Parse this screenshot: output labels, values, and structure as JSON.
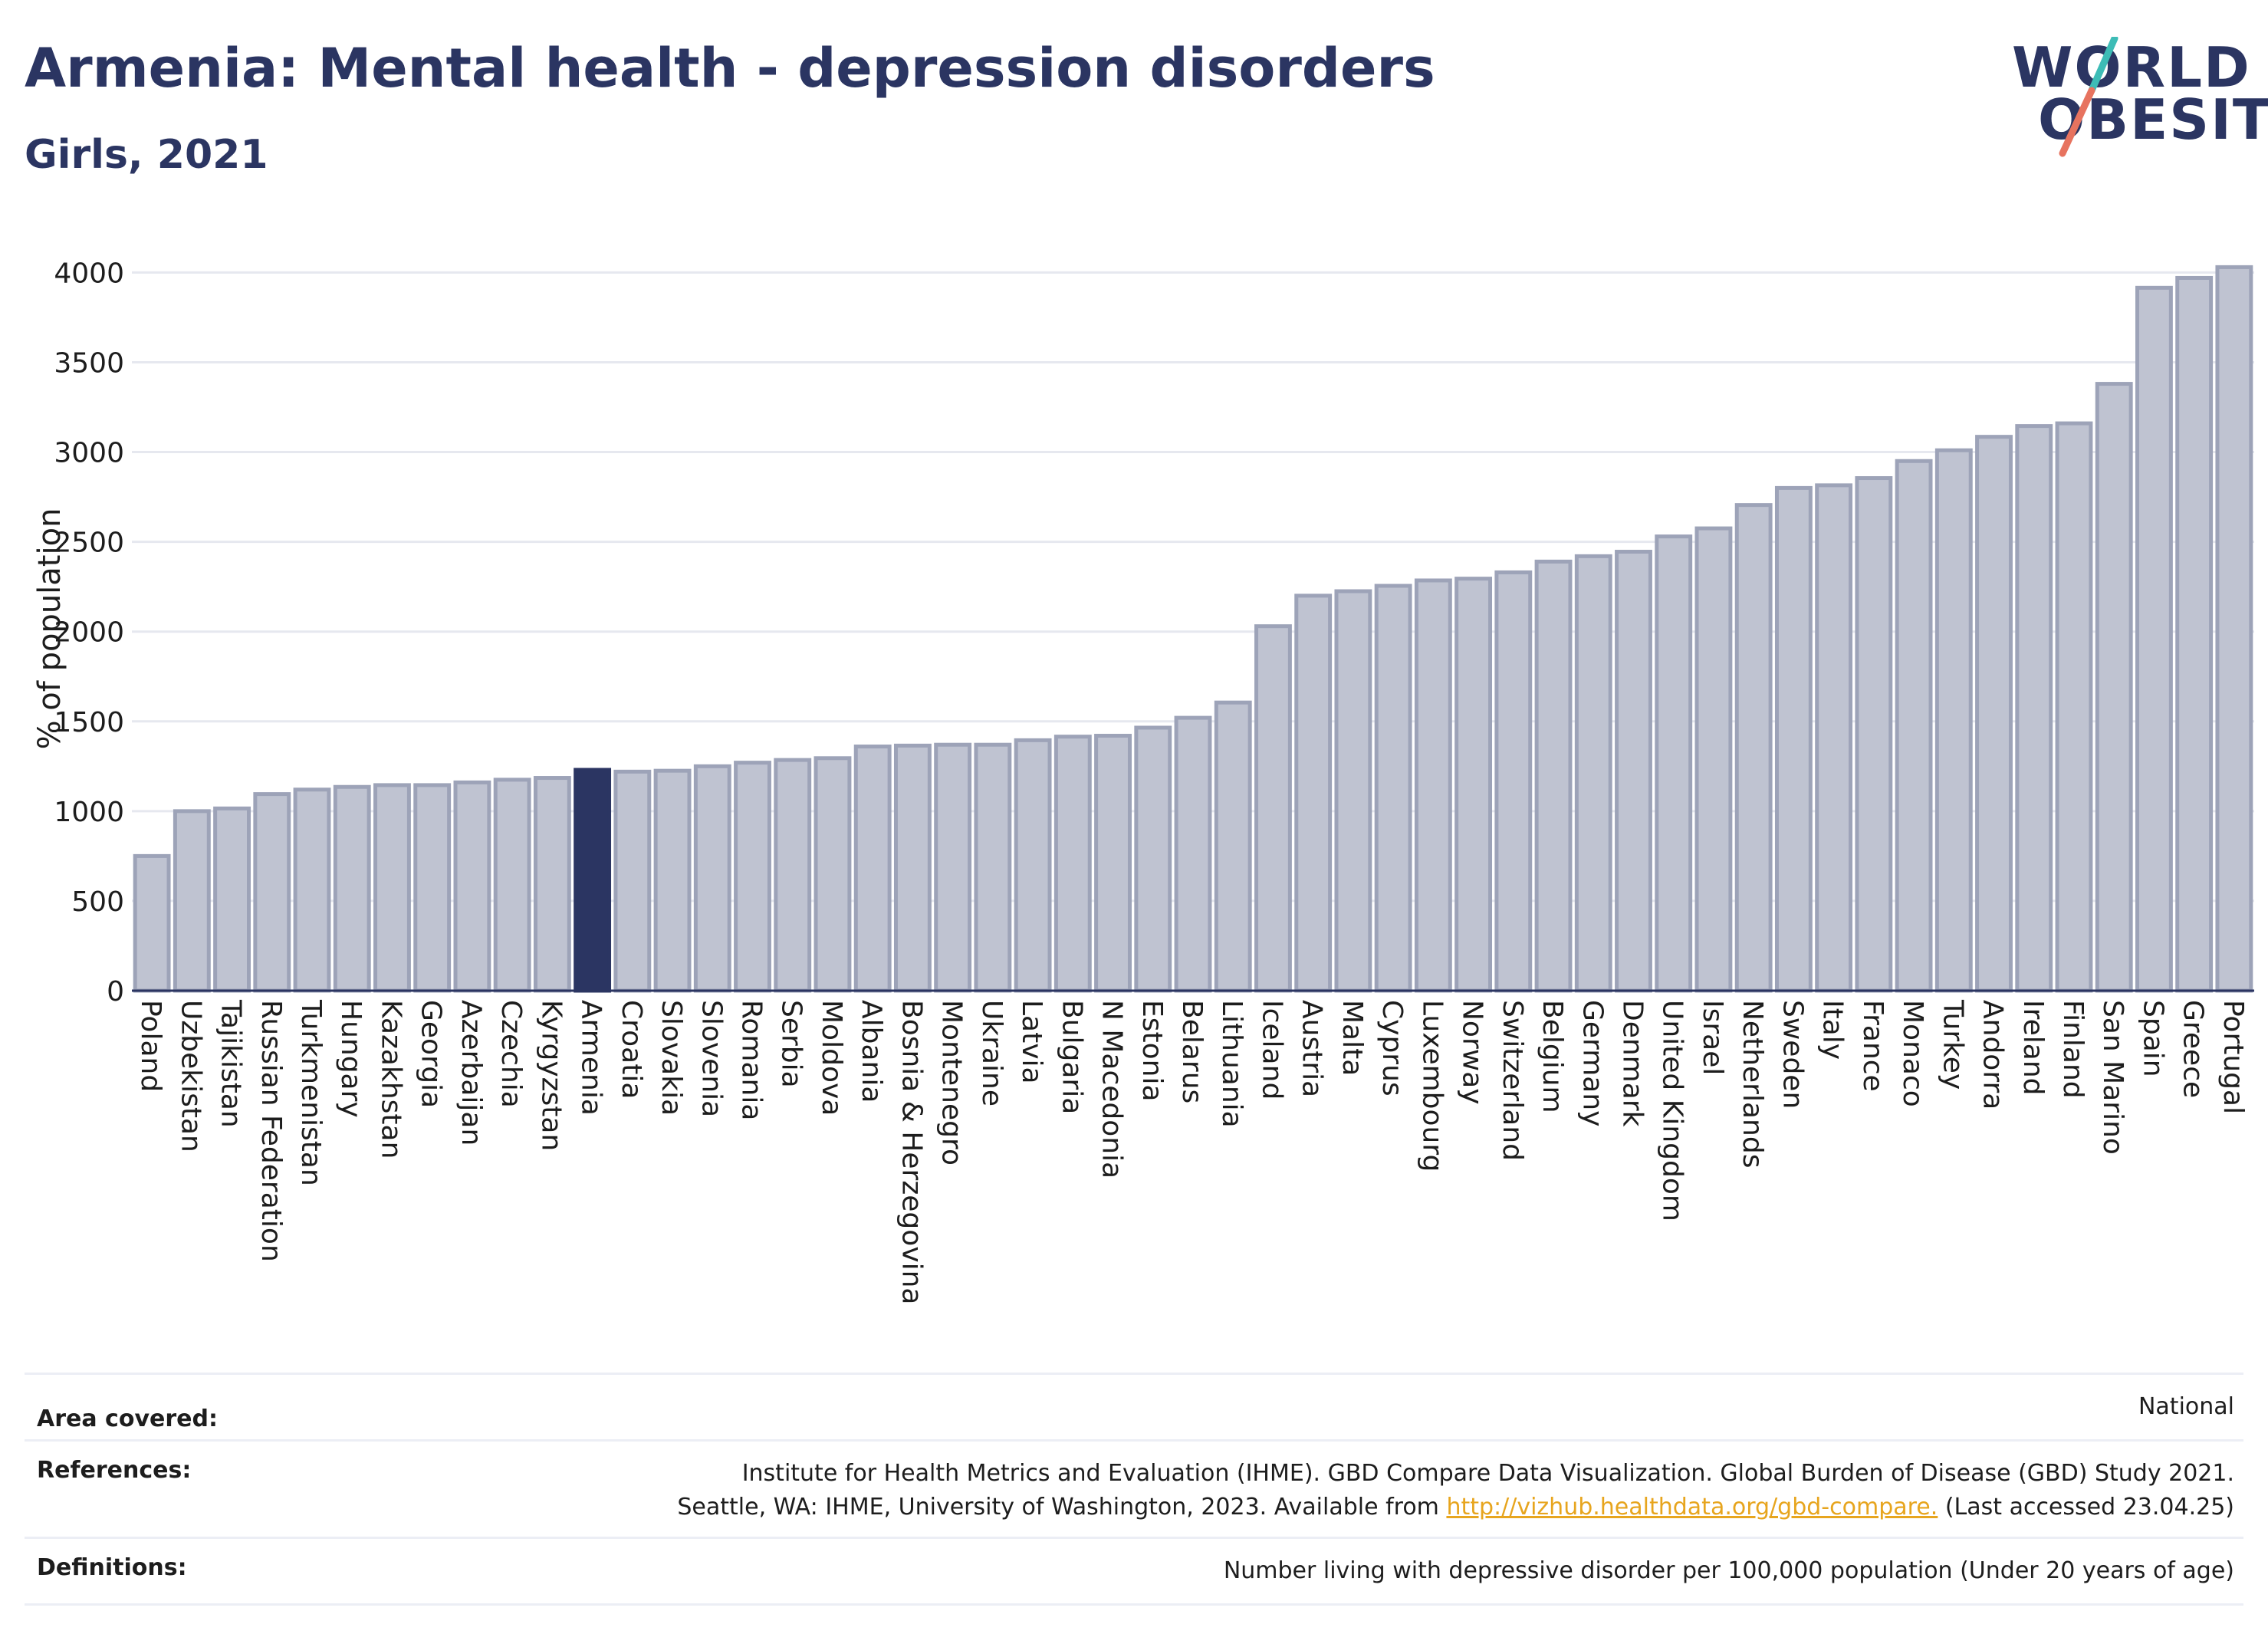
{
  "header": {
    "title": "Armenia: Mental health - depression disorders",
    "subtitle": "Girls, 2021"
  },
  "logo": {
    "line1": "WORLD",
    "line2": "OBESITY"
  },
  "colors": {
    "highlight": "#2b3562",
    "bar_fill": "#bfc3d1",
    "bar_stroke": "#9da3b8",
    "link": "#e7a51e",
    "logo_teal": "#3dbcb6",
    "logo_coral": "#e7735f"
  },
  "chart_data": {
    "type": "bar",
    "title": "Armenia: Mental health - depression disorders",
    "subtitle": "Girls, 2021",
    "ylabel": "% of population",
    "xlabel": "",
    "ylim": [
      0,
      4100
    ],
    "yticks": [
      0,
      500,
      1000,
      1500,
      2000,
      2500,
      3000,
      3500,
      4000
    ],
    "grid": true,
    "legend": "none",
    "highlight": "Armenia",
    "categories": [
      "Poland",
      "Uzbekistan",
      "Tajikistan",
      "Russian Federation",
      "Turkmenistan",
      "Hungary",
      "Kazakhstan",
      "Georgia",
      "Azerbaijan",
      "Czechia",
      "Kyrgyzstan",
      "Armenia",
      "Croatia",
      "Slovakia",
      "Slovenia",
      "Romania",
      "Serbia",
      "Moldova",
      "Albania",
      "Bosnia & Herzegovina",
      "Montenegro",
      "Ukraine",
      "Latvia",
      "Bulgaria",
      "N Macedonia",
      "Estonia",
      "Belarus",
      "Lithuania",
      "Iceland",
      "Austria",
      "Malta",
      "Cyprus",
      "Luxembourg",
      "Norway",
      "Switzerland",
      "Belgium",
      "Germany",
      "Denmark",
      "United Kingdom",
      "Israel",
      "Netherlands",
      "Sweden",
      "Italy",
      "France",
      "Monaco",
      "Turkey",
      "Andorra",
      "Ireland",
      "Finland",
      "San Marino",
      "Spain",
      "Greece",
      "Portugal"
    ],
    "values": [
      750,
      1000,
      1015,
      1095,
      1120,
      1135,
      1145,
      1145,
      1160,
      1175,
      1185,
      1230,
      1220,
      1225,
      1250,
      1270,
      1285,
      1295,
      1360,
      1365,
      1370,
      1370,
      1395,
      1415,
      1420,
      1465,
      1520,
      1605,
      2030,
      2200,
      2225,
      2255,
      2285,
      2295,
      2330,
      2390,
      2420,
      2445,
      2530,
      2575,
      2705,
      2800,
      2815,
      2855,
      2950,
      3010,
      3085,
      3145,
      3160,
      3380,
      3915,
      3970,
      4030
    ]
  },
  "footer": {
    "area_label": "Area covered:",
    "area_value": "National",
    "references_label": "References:",
    "references_line1": "Institute for Health Metrics and Evaluation (IHME). GBD Compare Data Visualization. Global Burden of Disease (GBD) Study 2021.",
    "references_line2_pre": "Seattle, WA: IHME, University of Washington, 2023. Available from ",
    "references_link": "http://vizhub.healthdata.org/gbd-compare.",
    "references_line2_post": " (Last accessed 23.04.25)",
    "definitions_label": "Definitions:",
    "definitions_value": "Number living with depressive disorder per 100,000 population (Under 20 years of age)"
  }
}
